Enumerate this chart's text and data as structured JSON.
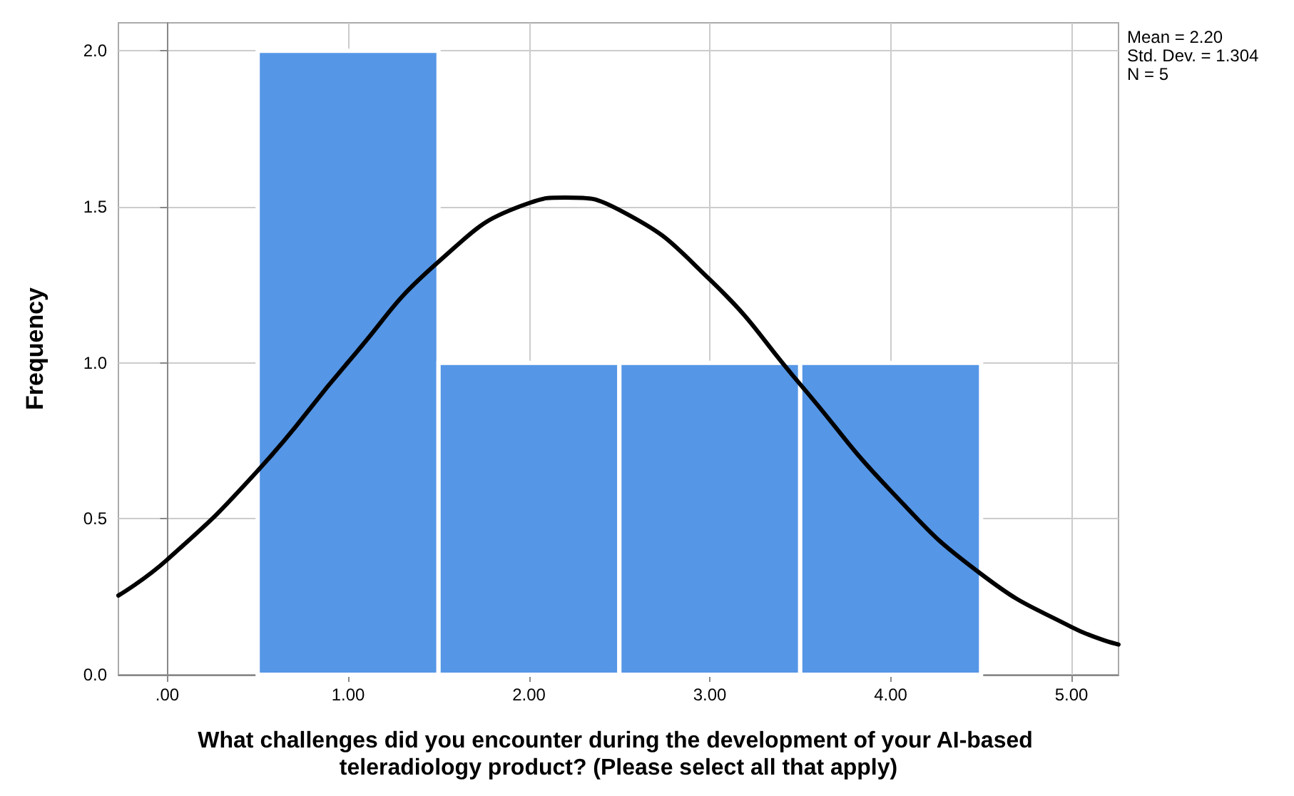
{
  "chart_data": {
    "type": "histogram",
    "xlabel": "What challenges did you encounter during the development of your AI-based teleradiology product? (Please select all that apply)",
    "ylabel": "Frequency",
    "bins": [
      0.5,
      1.5,
      2.5,
      3.5,
      4.5
    ],
    "series": [
      {
        "color": "#5596e6",
        "values": [
          2,
          1,
          1,
          1
        ]
      },
      {
        "type": "line",
        "color": "#000000",
        "x": [
          -0.27,
          0,
          0.5,
          1,
          1.5,
          2,
          2.2,
          2.5,
          3,
          3.5,
          4,
          4.5,
          5,
          5.26
        ],
        "values": [
          0.254,
          0.369,
          0.654,
          1.002,
          1.324,
          1.512,
          1.53,
          1.49,
          1.267,
          0.931,
          0.59,
          0.323,
          0.153,
          0.097
        ]
      }
    ],
    "xlim": [
      -0.27,
      5.26
    ],
    "ylim": [
      0,
      2.09
    ],
    "xticks": [
      {
        "value": 0,
        "label": ".00"
      },
      {
        "value": 1,
        "label": "1.00"
      },
      {
        "value": 2,
        "label": "2.00"
      },
      {
        "value": 3,
        "label": "3.00"
      },
      {
        "value": 4,
        "label": "4.00"
      },
      {
        "value": 5,
        "label": "5.00"
      }
    ],
    "yticks": [
      {
        "value": 0,
        "label": "0.0"
      },
      0.5,
      {
        "value": 1,
        "label": "1.0"
      },
      1.5,
      {
        "value": 2,
        "label": "2.0"
      }
    ],
    "grid": true,
    "marker": "none",
    "line_style": "solid",
    "annotations": [
      "Mean = 2.20",
      "Std. Dev. = 1.304",
      "N = 5"
    ]
  }
}
